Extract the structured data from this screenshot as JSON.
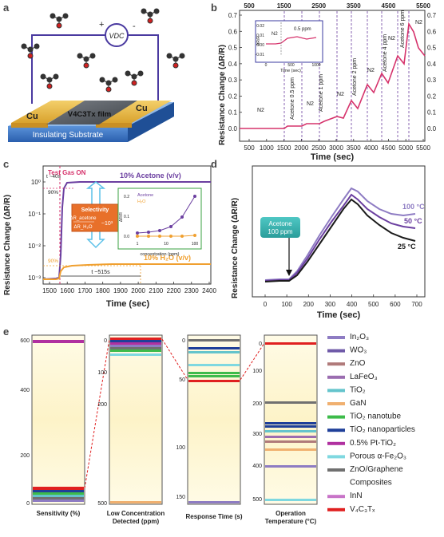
{
  "colors": {
    "pink": "#d6336c",
    "purple": "#6b3fa0",
    "orange": "#f0a030",
    "cu": "#e8b84a",
    "substrate": "#3a78c8",
    "film": "#555a60"
  },
  "panel_labels": {
    "a": "a",
    "b": "b",
    "c": "c",
    "d": "d",
    "e": "e"
  },
  "panel_a": {
    "voltage_label": "VDC",
    "plus": "+",
    "minus": "-",
    "film_label": "V4C3Tx film",
    "cu_left": "Cu",
    "cu_right": "Cu",
    "substrate_label": "Insulating Substrate"
  },
  "panel_b": {
    "ylabel": "Resistance Change (ΔR/R)",
    "xlabel": "Time (sec)",
    "x_ticks": [
      "500",
      "1000",
      "1500",
      "2000",
      "2500",
      "3000",
      "3500",
      "4000",
      "4500",
      "5000",
      "5500"
    ],
    "x_ticks_top": [
      "500",
      "1500",
      "2500",
      "3500",
      "4500",
      "5500"
    ],
    "y_ticks": [
      "0.0",
      "0.1",
      "0.2",
      "0.3",
      "0.4",
      "0.5",
      "0.6",
      "0.7"
    ],
    "labels": [
      "N2",
      "Acetone 0.5 ppm",
      "N2",
      "Acetone 1 ppm",
      "N2",
      "Acetone 2 ppm",
      "N2",
      "Acetone 4 ppm",
      "N2",
      "Acetone 6 ppm",
      "N2"
    ],
    "inset": {
      "title": "0.5 ppm",
      "n2": "N2",
      "ylabel": "ΔR/R",
      "xlabel": "Time (sec)",
      "x_ticks": [
        "0",
        "500",
        "1000"
      ],
      "y_ticks": [
        "0.02",
        "0.01",
        "0.00",
        "-0.01"
      ]
    }
  },
  "panel_c": {
    "ylabel": "Resistance Change (ΔR/R)",
    "xlabel": "Time (sec)",
    "x_ticks": [
      "1500",
      "1600",
      "1700",
      "1800",
      "1900",
      "2000",
      "2100",
      "2200",
      "2300",
      "2400"
    ],
    "y_ticks": [
      "10⁰",
      "10⁻¹",
      "10⁻²",
      "10⁻³"
    ],
    "test_gas": "Test Gas ON",
    "t40": "t ~40s",
    "pct90_a": "90%",
    "pct90_b": "90%",
    "t515": "t ~515s",
    "acetone": "10% Acetone (v/v)",
    "h2o": "10% H₂O (v/v)",
    "selectivity": "Selectivity",
    "sel_num": "ΔR_acetone",
    "sel_den": "ΔR_H₂O",
    "sel_val": "~10³",
    "inset": {
      "legend1": "Acetone",
      "legend2": "H₂O",
      "xlabel": "concentration (ppm)",
      "ylabel": "ΔR/R",
      "x_ticks": [
        "1",
        "10",
        "100"
      ],
      "y_ticks": [
        "0.2",
        "0.1",
        "0.0"
      ]
    }
  },
  "panel_d": {
    "ylabel": "Resistance Change (ΔR/R)",
    "xlabel": "Time (sec)",
    "x_ticks": [
      "0",
      "100",
      "200",
      "300",
      "400",
      "500",
      "600",
      "700"
    ],
    "callout": "Acetone 100 ppm",
    "t100": "100 °C",
    "t50": "50 °C",
    "t25": "25 °C"
  },
  "panel_e": {
    "axis_labels": [
      "Sensitivity (%)",
      "Low Concentration Detected (ppm)",
      "Response Time (s)",
      "Operation Temperature (°C)"
    ],
    "col1_ticks": [
      "600",
      "400",
      "200",
      "0"
    ],
    "col2_ticks": [
      "0",
      "100",
      "200",
      "500"
    ],
    "col3_ticks": [
      "0",
      "50",
      "100",
      "150"
    ],
    "col4_ticks": [
      "0",
      "100",
      "200",
      "300",
      "400",
      "500"
    ],
    "legend": [
      {
        "label": "In₂O₃",
        "color": "#8e7cc3"
      },
      {
        "label": "WO₃",
        "color": "#6f5aa8"
      },
      {
        "label": "ZnO",
        "color": "#b07a7a"
      },
      {
        "label": "LaFeO₃",
        "color": "#9b6db0"
      },
      {
        "label": "TiO₂",
        "color": "#64c4cc"
      },
      {
        "label": "GaN",
        "color": "#f0b070"
      },
      {
        "label": "TiO₂ nanotube",
        "color": "#3dbb4a"
      },
      {
        "label": "TiO₂ nanoparticles",
        "color": "#1f3f99"
      },
      {
        "label": "0.5% Pt-TiO₂",
        "color": "#b030a0"
      },
      {
        "label": "Porous α-Fe₂O₃",
        "color": "#7fd8e0"
      },
      {
        "label": "ZnO/Graphene",
        "color": "#707070"
      },
      {
        "label": "Composites",
        "color": ""
      },
      {
        "label": "InN",
        "color": "#c874c8"
      },
      {
        "label": "V₄C₃Tₓ",
        "color": "#e02020"
      }
    ]
  }
}
